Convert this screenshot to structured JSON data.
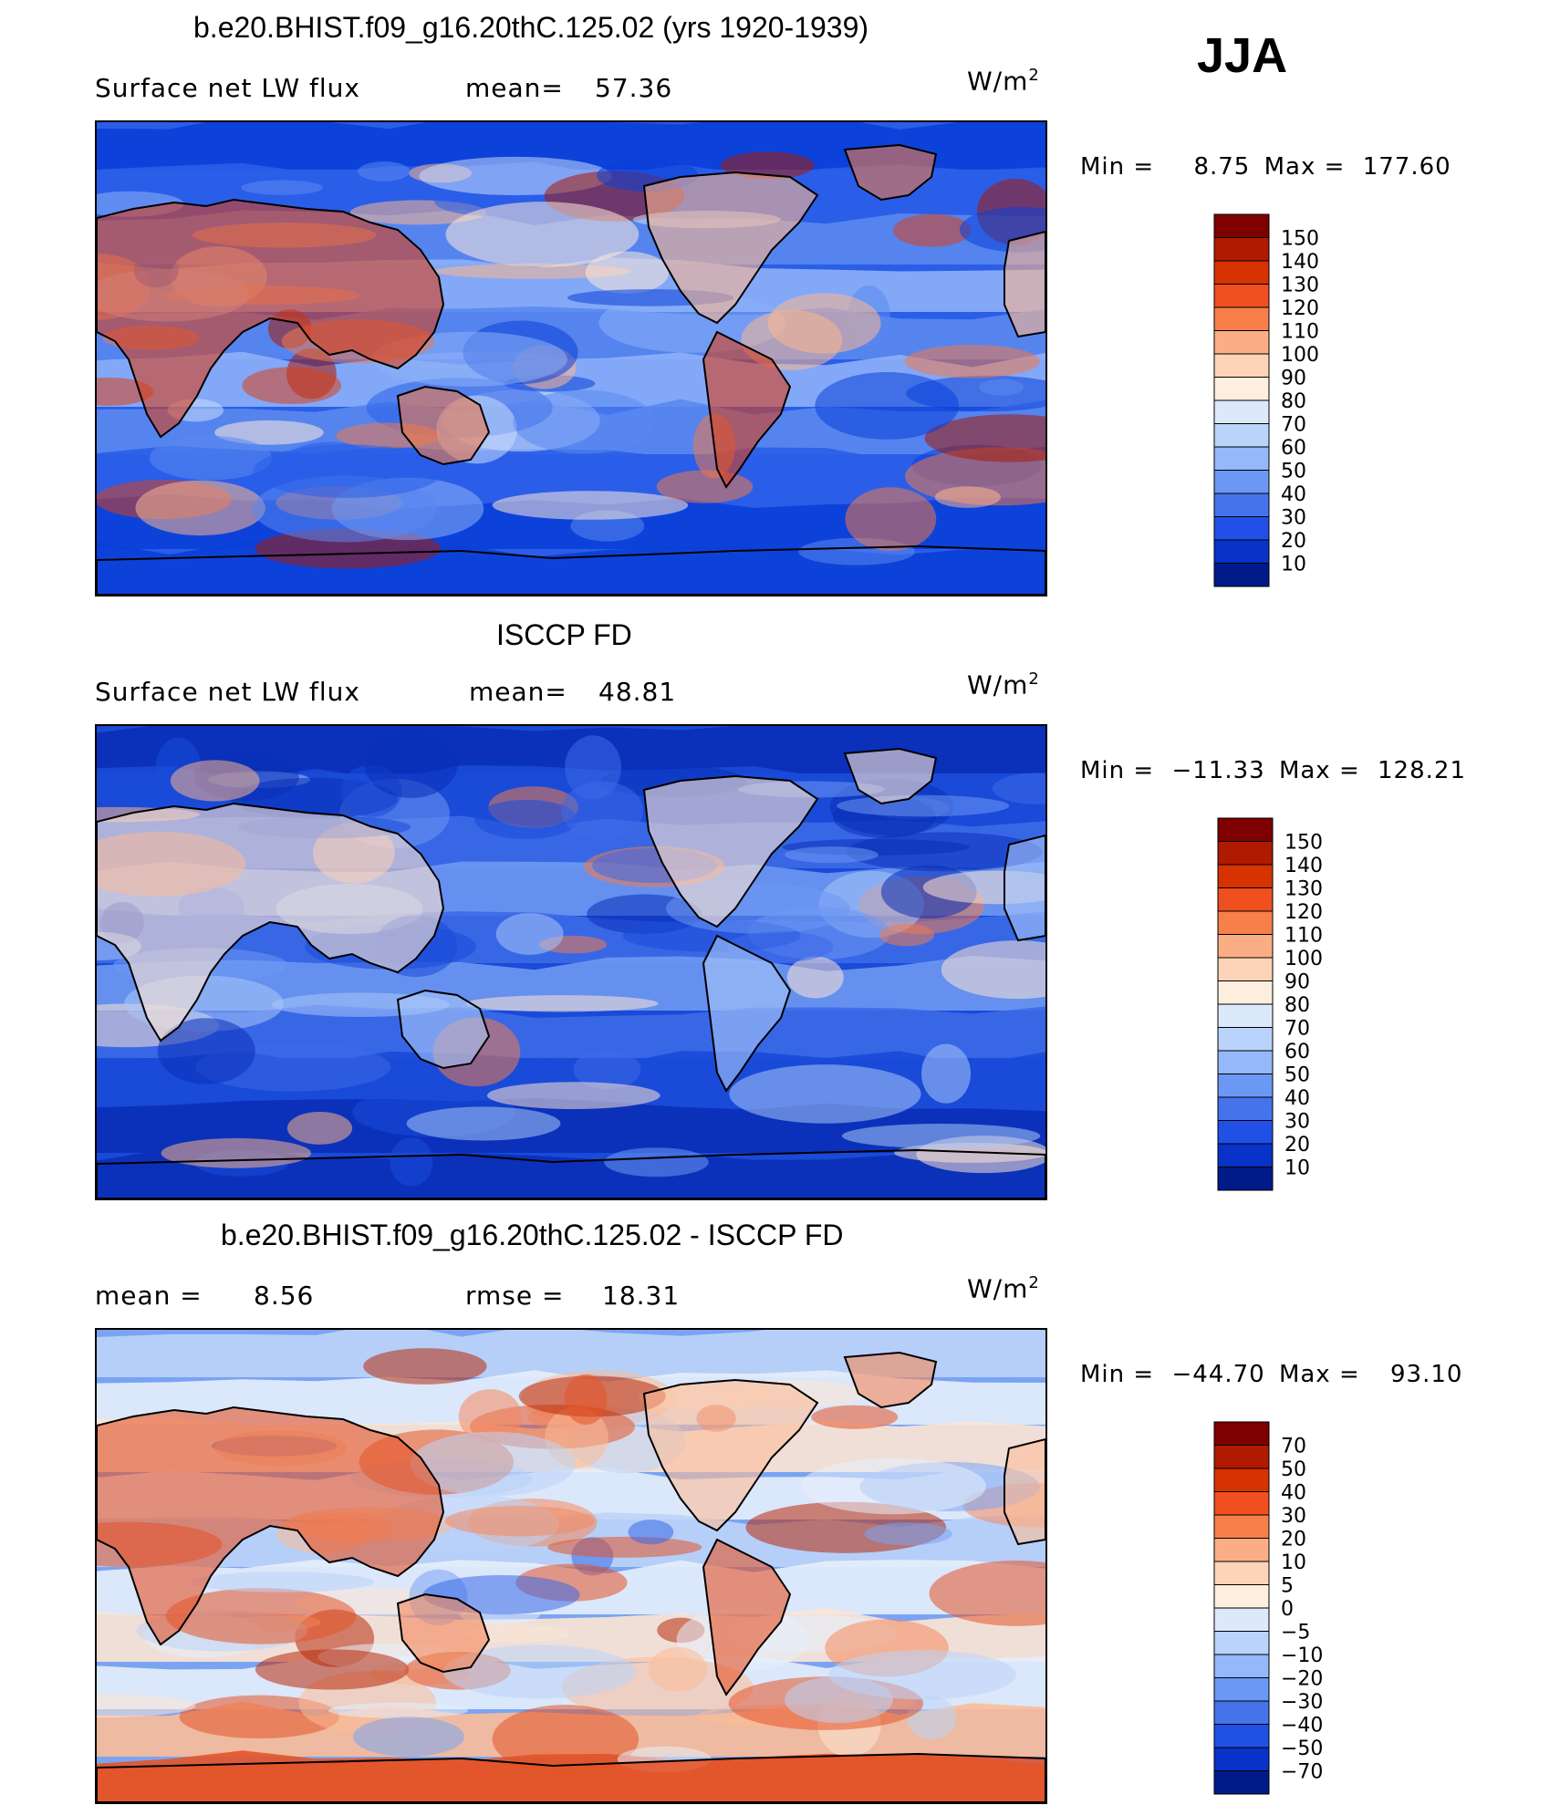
{
  "season": "JJA",
  "unit_html": "W/m",
  "unit_sup": "2",
  "panels": [
    {
      "title": "b.e20.BHIST.f09_g16.20thC.125.02 (yrs 1920-1939)",
      "left_label": "Surface net LW flux",
      "stat1_label": "mean=",
      "stat1_value": "57.36",
      "stat2_label": "",
      "stat2_value": "",
      "min_label": "Min =",
      "min_value": "8.75",
      "max_label": "Max =",
      "max_value": "177.60",
      "colorbar": {
        "labels": [
          "150",
          "140",
          "130",
          "120",
          "110",
          "100",
          "90",
          "80",
          "70",
          "60",
          "50",
          "40",
          "30",
          "20",
          "10"
        ],
        "colors": [
          "#7f0000",
          "#b01a00",
          "#d63300",
          "#f05020",
          "#f7804a",
          "#fbae84",
          "#fdd4b8",
          "#fdeedd",
          "#dce9fb",
          "#bad3fb",
          "#94b8fa",
          "#6c98f5",
          "#4473ec",
          "#2050e6",
          "#0832c8",
          "#001a8a"
        ]
      },
      "map_palette": [
        "#0a3fd8",
        "#2a5ee8",
        "#5a88f0",
        "#8db0f8",
        "#c8dcfb",
        "#fde9d8",
        "#fbb690",
        "#f07848",
        "#d8401a",
        "#a81a05"
      ]
    },
    {
      "title": "ISCCP FD",
      "left_label": "Surface net LW flux",
      "stat1_label": "mean=",
      "stat1_value": "48.81",
      "stat2_label": "",
      "stat2_value": "",
      "min_label": "Min =",
      "min_value": "−11.33",
      "max_label": "Max =",
      "max_value": "128.21",
      "colorbar": {
        "labels": [
          "150",
          "140",
          "130",
          "120",
          "110",
          "100",
          "90",
          "80",
          "70",
          "60",
          "50",
          "40",
          "30",
          "20",
          "10"
        ],
        "colors": [
          "#7f0000",
          "#b01a00",
          "#d63300",
          "#f05020",
          "#f7804a",
          "#fbae84",
          "#fdd4b8",
          "#fdeedd",
          "#dce9fb",
          "#bad3fb",
          "#94b8fa",
          "#6c98f5",
          "#4473ec",
          "#2050e6",
          "#0832c8",
          "#001a8a"
        ]
      },
      "map_palette": [
        "#0a2fb8",
        "#1a4ad8",
        "#3c6ae8",
        "#6e98f2",
        "#a8c6f8",
        "#fde4d2",
        "#fab38c",
        "#f07a4c"
      ]
    },
    {
      "title": "b.e20.BHIST.f09_g16.20thC.125.02 - ISCCP FD",
      "left_label": "mean =",
      "left_value": "8.56",
      "stat1_label": "rmse =",
      "stat1_value": "18.31",
      "stat2_label": "",
      "stat2_value": "",
      "min_label": "Min =",
      "min_value": "−44.70",
      "max_label": "Max =",
      "max_value": "93.10",
      "colorbar": {
        "labels": [
          "70",
          "50",
          "40",
          "30",
          "20",
          "10",
          "5",
          "0",
          "−5",
          "−10",
          "−20",
          "−30",
          "−40",
          "−50",
          "−70"
        ],
        "colors": [
          "#7f0000",
          "#b01a00",
          "#d63300",
          "#f05020",
          "#f7804a",
          "#fbae84",
          "#fdd4b8",
          "#fdeedd",
          "#dce9fb",
          "#bad3fb",
          "#94b8fa",
          "#6c98f5",
          "#4473ec",
          "#2050e6",
          "#0832c8",
          "#001a8a"
        ]
      },
      "map_palette": [
        "#3a6ae8",
        "#7aa4f2",
        "#bcd4f8",
        "#e6eefb",
        "#fde6d4",
        "#fbbc98",
        "#f5885c",
        "#e45428",
        "#b82a0a"
      ]
    }
  ]
}
